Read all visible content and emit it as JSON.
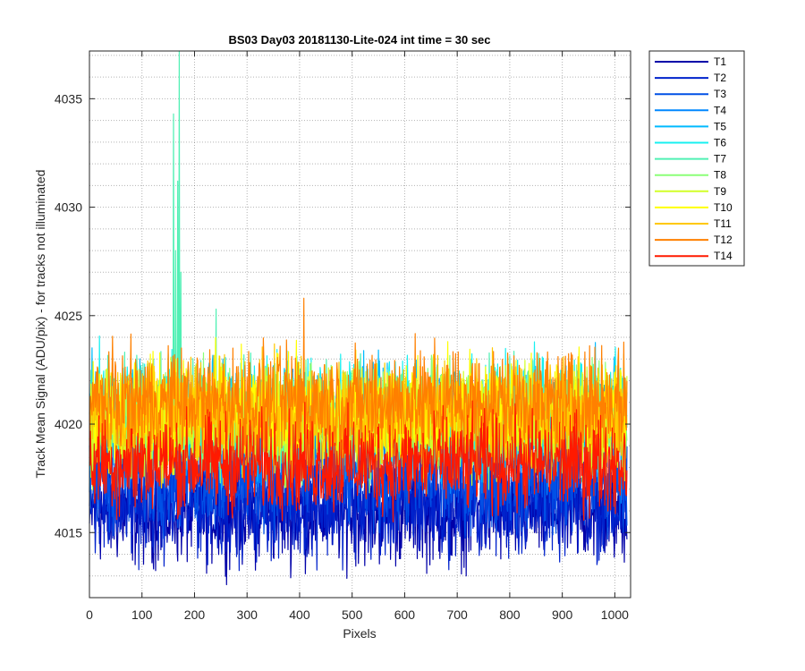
{
  "chart_data": {
    "type": "line",
    "title": "BS03 Day03 20181130-Lite-024 int time = 30 sec",
    "xlabel": "Pixels",
    "ylabel": "Track Mean Signal (ADU/pix) - for tracks not illuminated",
    "xlim": [
      0,
      1030
    ],
    "ylim": [
      4012,
      4037.2
    ],
    "x_ticks": [
      0,
      100,
      200,
      300,
      400,
      500,
      600,
      700,
      800,
      900,
      1000
    ],
    "y_ticks": [
      4015,
      4020,
      4025,
      4030,
      4035
    ],
    "y_minor_step": 1,
    "grid": "major and minor, dotted",
    "legend_position": "outside-right-top",
    "series": [
      {
        "name": "T1",
        "color": "#0000a8",
        "mean": 4016.0,
        "spread": 1.3
      },
      {
        "name": "T2",
        "color": "#0022cc",
        "mean": 4016.3,
        "spread": 1.3
      },
      {
        "name": "T3",
        "color": "#0050e6",
        "mean": 4017.6,
        "spread": 1.3
      },
      {
        "name": "T4",
        "color": "#0088ff",
        "mean": 4019.5,
        "spread": 1.3
      },
      {
        "name": "T5",
        "color": "#00baff",
        "mean": 4020.3,
        "spread": 1.3
      },
      {
        "name": "T6",
        "color": "#18f0f0",
        "mean": 4020.6,
        "spread": 1.3
      },
      {
        "name": "T7",
        "color": "#50f0b4",
        "mean": 4020.4,
        "spread": 1.3,
        "spikes": [
          {
            "x": 160,
            "y": 4034.3
          },
          {
            "x": 164,
            "y": 4028.0
          },
          {
            "x": 168,
            "y": 4031.2
          },
          {
            "x": 171,
            "y": 4037.2
          },
          {
            "x": 174,
            "y": 4027.0
          },
          {
            "x": 241,
            "y": 4025.3
          }
        ]
      },
      {
        "name": "T8",
        "color": "#8cff78",
        "mean": 4020.2,
        "spread": 1.3
      },
      {
        "name": "T9",
        "color": "#d2ff28",
        "mean": 4020.0,
        "spread": 1.3
      },
      {
        "name": "T10",
        "color": "#ffff00",
        "mean": 4020.6,
        "spread": 1.3
      },
      {
        "name": "T11",
        "color": "#ffc800",
        "mean": 4020.4,
        "spread": 1.3
      },
      {
        "name": "T12",
        "color": "#ff8000",
        "mean": 4021.0,
        "spread": 1.3,
        "spikes": [
          {
            "x": 408,
            "y": 4025.8
          }
        ]
      },
      {
        "name": "T14",
        "color": "#ff1a00",
        "mean": 4018.2,
        "spread": 1.2
      }
    ],
    "n_points": 1024
  }
}
